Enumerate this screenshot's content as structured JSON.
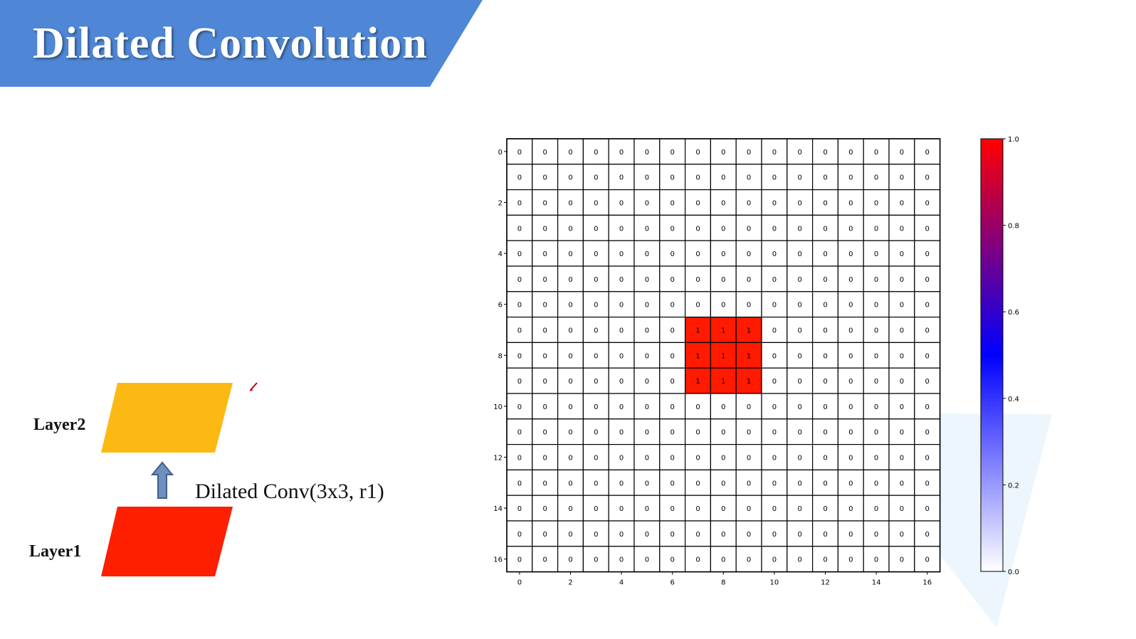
{
  "slide": {
    "title": "Dilated Convolution",
    "banner_color": "#4f87d6"
  },
  "diagram": {
    "layer2_label": "Layer2",
    "layer1_label": "Layer1",
    "operation_label": "Dilated Conv(3x3, r1)",
    "layer2_color": "#fdb913",
    "layer1_color": "#fe1e00",
    "arrow_icon": "up-arrow-icon",
    "arrow_color": "#5b7fb0"
  },
  "chart_data": {
    "type": "heatmap",
    "rows": 17,
    "cols": 17,
    "highlight_value": 1,
    "highlight_rows": [
      7,
      8,
      9
    ],
    "highlight_cols": [
      7,
      8,
      9
    ],
    "default_value": 0,
    "x_ticks": [
      "0",
      "2",
      "4",
      "6",
      "8",
      "10",
      "12",
      "14",
      "16"
    ],
    "y_ticks": [
      "0",
      "2",
      "4",
      "6",
      "8",
      "10",
      "12",
      "14",
      "16"
    ],
    "colorbar": {
      "min": 0.0,
      "max": 1.0,
      "ticks": [
        "0.0",
        "0.2",
        "0.4",
        "0.6",
        "0.8",
        "1.0"
      ],
      "colors": [
        "#ffffff",
        "#0000ff",
        "#ff0000"
      ]
    },
    "grid": true,
    "legend": "right"
  }
}
